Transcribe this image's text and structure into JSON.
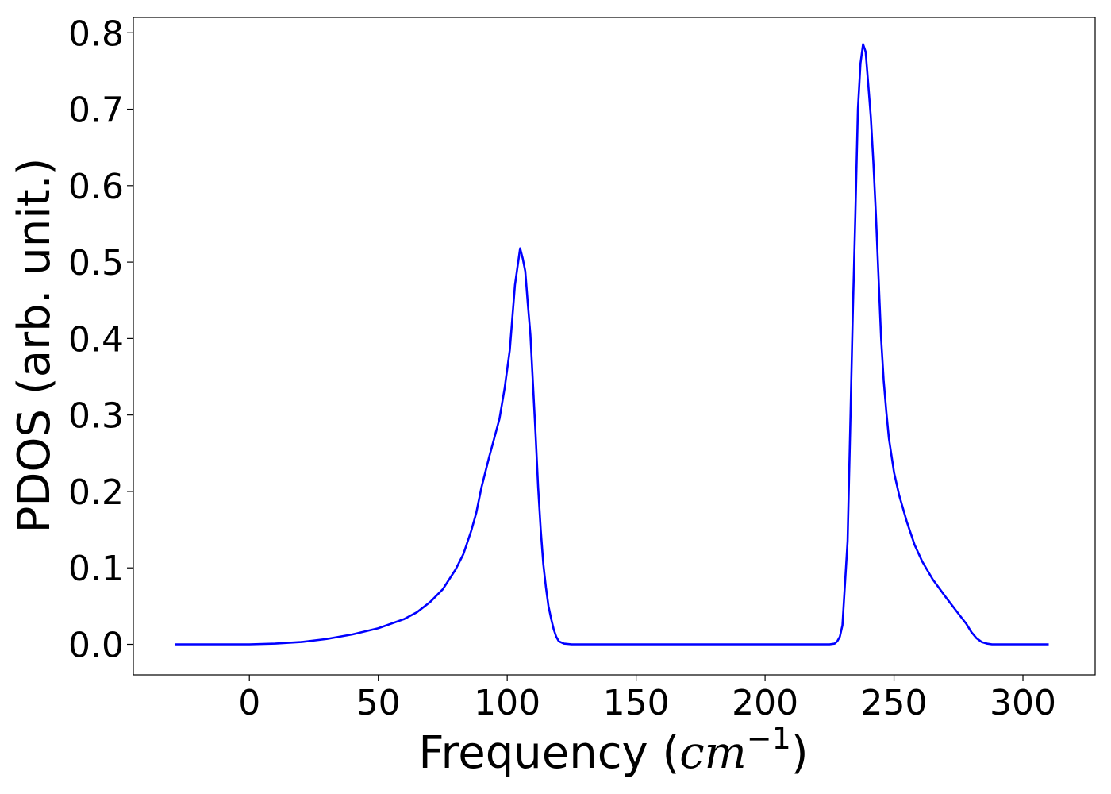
{
  "chart_data": {
    "type": "line",
    "title": "",
    "xlabel_prefix": "Frequency (",
    "xlabel_unit": "cm",
    "xlabel_exponent": "−1",
    "xlabel_suffix": ")",
    "ylabel": "PDOS (arb. unit.)",
    "xlim": [
      -45,
      328
    ],
    "ylim": [
      -0.04,
      0.82
    ],
    "xticks": [
      0,
      50,
      100,
      150,
      200,
      250,
      300
    ],
    "xtick_labels": [
      "0",
      "50",
      "100",
      "150",
      "200",
      "250",
      "300"
    ],
    "yticks": [
      0.0,
      0.1,
      0.2,
      0.3,
      0.4,
      0.5,
      0.6,
      0.7,
      0.8
    ],
    "ytick_labels": [
      "0.0",
      "0.1",
      "0.2",
      "0.3",
      "0.4",
      "0.5",
      "0.6",
      "0.7",
      "0.8"
    ],
    "grid": false,
    "legend": "none",
    "series": [
      {
        "color": "#0000ff",
        "x": [
          -29,
          -10,
          0,
          10,
          20,
          30,
          40,
          50,
          60,
          65,
          70,
          75,
          80,
          83,
          86,
          88,
          90,
          93,
          95,
          97,
          99,
          101,
          103,
          105,
          106,
          107,
          108,
          109,
          110,
          111,
          112,
          113,
          114,
          115,
          116,
          117,
          118,
          119,
          120,
          122,
          125,
          150,
          200,
          225,
          227,
          228,
          229,
          230,
          231,
          232,
          233,
          234,
          235,
          236,
          237,
          238,
          239,
          240,
          241,
          242,
          243,
          244,
          245,
          246,
          247,
          248,
          250,
          252,
          255,
          258,
          261,
          265,
          270,
          275,
          278,
          280,
          282,
          284,
          286,
          288,
          290,
          310
        ],
        "y": [
          0,
          0,
          0,
          0.001,
          0.003,
          0.007,
          0.013,
          0.021,
          0.033,
          0.042,
          0.055,
          0.072,
          0.098,
          0.118,
          0.148,
          0.172,
          0.205,
          0.245,
          0.27,
          0.295,
          0.335,
          0.385,
          0.47,
          0.518,
          0.505,
          0.488,
          0.445,
          0.405,
          0.34,
          0.275,
          0.205,
          0.15,
          0.105,
          0.075,
          0.05,
          0.034,
          0.02,
          0.01,
          0.004,
          0.001,
          0,
          0,
          0,
          0,
          0.001,
          0.004,
          0.01,
          0.025,
          0.08,
          0.135,
          0.28,
          0.43,
          0.56,
          0.7,
          0.76,
          0.785,
          0.775,
          0.733,
          0.69,
          0.63,
          0.56,
          0.48,
          0.4,
          0.345,
          0.305,
          0.27,
          0.225,
          0.195,
          0.16,
          0.13,
          0.108,
          0.085,
          0.062,
          0.04,
          0.027,
          0.016,
          0.008,
          0.003,
          0.001,
          0,
          0,
          0
        ]
      }
    ]
  }
}
